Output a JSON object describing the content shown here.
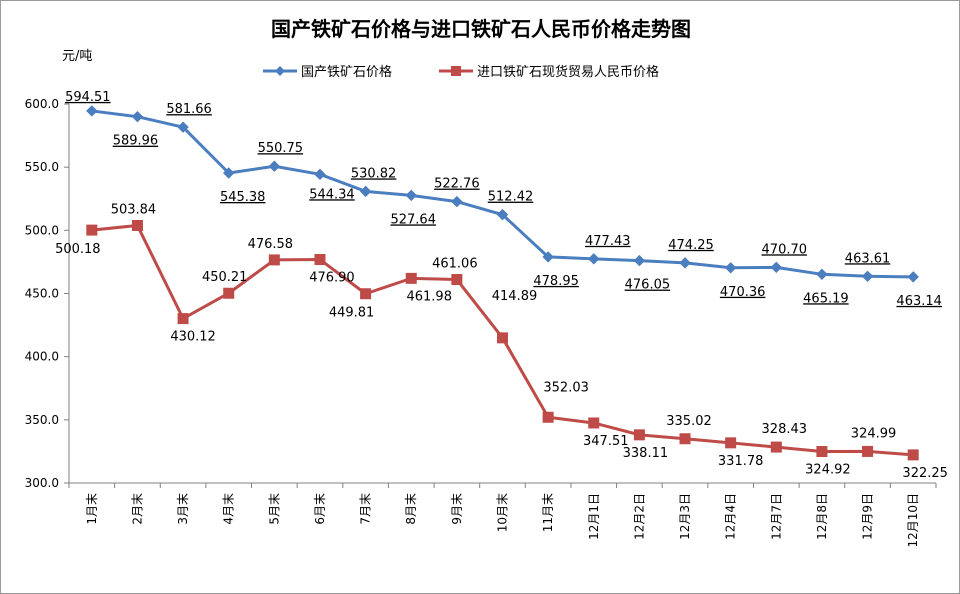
{
  "chart_data": {
    "type": "line",
    "title": "国产铁矿石价格与进口铁矿石人民币价格走势图",
    "ylabel": "元/吨",
    "xlabel": "",
    "ylim": [
      300,
      600
    ],
    "ytick_labels": [
      "300.0",
      "350.0",
      "400.0",
      "450.0",
      "500.0",
      "550.0",
      "600.0"
    ],
    "grid": false,
    "legend_position": "top",
    "categories": [
      "1月末",
      "2月末",
      "3月末",
      "4月末",
      "5月末",
      "6月末",
      "7月末",
      "8月末",
      "9月末",
      "10月末",
      "11月末",
      "12月1日",
      "12月2日",
      "12月3日",
      "12月4日",
      "12月7日",
      "12月8日",
      "12月9日",
      "12月10日"
    ],
    "series": [
      {
        "name": "国产铁矿石价格",
        "color": "#4a7ebf",
        "marker": "diamond",
        "values": [
          594.51,
          589.96,
          581.66,
          545.38,
          550.75,
          544.34,
          530.82,
          527.64,
          522.76,
          512.42,
          478.95,
          477.43,
          476.05,
          474.25,
          470.36,
          470.7,
          465.19,
          463.61,
          463.14
        ],
        "labels": [
          "594.51",
          "589.96",
          "581.66",
          "545.38",
          "550.75",
          "544.34",
          "530.82",
          "527.64",
          "522.76",
          "512.42",
          "478.95",
          "477.43",
          "476.05",
          "474.25",
          "470.36",
          "470.70",
          "465.19",
          "463.61",
          "463.14"
        ]
      },
      {
        "name": "进口铁矿石现货贸易人民币价格",
        "color": "#be4b48",
        "marker": "square",
        "values": [
          500.18,
          503.84,
          430.12,
          450.21,
          476.58,
          476.9,
          449.81,
          461.98,
          461.06,
          414.89,
          352.03,
          347.51,
          338.11,
          335.02,
          331.78,
          328.43,
          324.92,
          324.99,
          322.25
        ],
        "labels": [
          "500.18",
          "503.84",
          "430.12",
          "450.21",
          "476.58",
          "476.90",
          "449.81",
          "461.98",
          "461.06",
          "414.89",
          "352.03",
          "347.51",
          "338.11",
          "335.02",
          "331.78",
          "328.43",
          "324.92",
          "324.99",
          "322.25"
        ]
      }
    ]
  }
}
